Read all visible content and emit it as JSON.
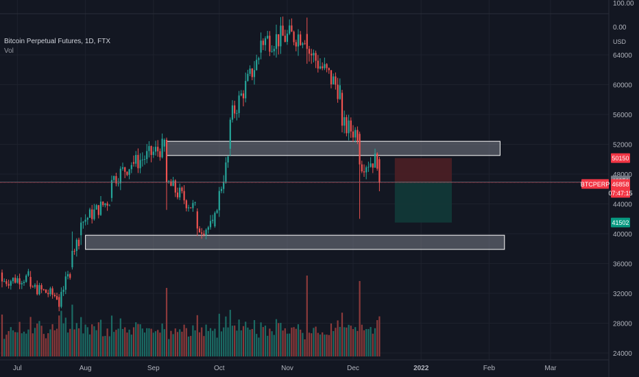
{
  "legend": {
    "title": "Bitcoin Perpetual Futures, 1D, FTX",
    "volume": "Vol"
  },
  "scale_label": "USD",
  "top_scale_labels": [
    "100.00",
    "0.00"
  ],
  "price_tags": [
    {
      "text": "50150",
      "bg": "#f23645",
      "fg": "#ffffff"
    },
    {
      "text": "46951",
      "bg": "#787b86",
      "fg": "#ffffff"
    },
    {
      "text": "BTCPERP",
      "bg": "#f23645",
      "fg": "#ffffff"
    },
    {
      "text": "46858",
      "bg": "#f23645",
      "fg": "#ffffff"
    },
    {
      "text": "07:47:15",
      "bg": "#f23645",
      "fg": "#ffffff"
    },
    {
      "text": "41502",
      "bg": "#089981",
      "fg": "#ffffff"
    }
  ],
  "colors": {
    "background": "#131722",
    "up": "#26a69a",
    "down": "#ef5350",
    "vol_up": "#1b6b64",
    "vol_down": "#8c3a3b",
    "grid": "#1e222d",
    "axis_text": "#b2b5be",
    "zone_fill": "#787b86",
    "zone_border": "#ffffff",
    "stop_fill": "#4d1f25",
    "target_fill": "#123a39",
    "last_price_line": "#f23645"
  },
  "chart_data": {
    "type": "candlestick",
    "title": "Bitcoin Perpetual Futures, 1D, FTX",
    "ylabel": "USD",
    "y_ticks": [
      24000,
      28000,
      32000,
      36000,
      40000,
      44000,
      48000,
      52000,
      56000,
      60000,
      64000
    ],
    "ylim": [
      23500,
      67700
    ],
    "x_ticks": [
      "Jul",
      "Aug",
      "Sep",
      "Oct",
      "Nov",
      "Dec",
      "2022",
      "Feb",
      "Mar"
    ],
    "grid": true,
    "last_price": 46858,
    "series": [
      {
        "date": "2021-06-24",
        "ohlc": [
          34800,
          35200,
          32800,
          33600
        ]
      },
      {
        "date": "2021-07-07",
        "ohlc": [
          34200,
          35000,
          32600,
          32900
        ]
      },
      {
        "date": "2021-07-20",
        "ohlc": [
          31500,
          31900,
          29600,
          30200
        ]
      },
      {
        "date": "2021-07-21",
        "ohlc": [
          30200,
          32800,
          30000,
          32200
        ]
      },
      {
        "date": "2021-07-26",
        "ohlc": [
          35500,
          40300,
          35200,
          37700
        ]
      },
      {
        "date": "2021-07-30",
        "ohlc": [
          39800,
          42200,
          38500,
          41500
        ]
      },
      {
        "date": "2021-08-13",
        "ohlc": [
          44800,
          47800,
          44300,
          47200
        ]
      },
      {
        "date": "2021-08-23",
        "ohlc": [
          49600,
          50500,
          49000,
          49400
        ]
      },
      {
        "date": "2021-09-06",
        "ohlc": [
          51700,
          52800,
          51000,
          52600
        ]
      },
      {
        "date": "2021-09-07",
        "ohlc": [
          52600,
          52900,
          43200,
          46900
        ]
      },
      {
        "date": "2021-09-21",
        "ohlc": [
          43000,
          43400,
          39700,
          40700
        ]
      },
      {
        "date": "2021-09-29",
        "ohlc": [
          41000,
          43000,
          40800,
          42800
        ]
      },
      {
        "date": "2021-10-06",
        "ohlc": [
          51400,
          55600,
          50400,
          55300
        ]
      },
      {
        "date": "2021-10-20",
        "ohlc": [
          64300,
          67000,
          63400,
          65900
        ]
      },
      {
        "date": "2021-11-10",
        "ohlc": [
          66800,
          69000,
          62800,
          64800
        ]
      },
      {
        "date": "2021-11-26",
        "ohlc": [
          58900,
          59300,
          53600,
          54500
        ]
      },
      {
        "date": "2021-12-04",
        "ohlc": [
          53400,
          53700,
          42000,
          49300
        ]
      },
      {
        "date": "2021-12-13",
        "ohlc": [
          50000,
          50300,
          45700,
          46858
        ]
      }
    ],
    "volume": {
      "max_bar_date": "2021-11-10",
      "note_values": "relative"
    },
    "annotations": {
      "resistance_zone": {
        "from": "2021-09-07",
        "to": "2022-02-06",
        "low": 50500,
        "high": 52400
      },
      "support_zone": {
        "from": "2021-08-01",
        "to": "2022-02-08",
        "low": 37900,
        "high": 39800
      },
      "short_position": {
        "from": "2021-12-20",
        "to": "2022-01-15",
        "entry": 46951,
        "stop": 50150,
        "target": 41502
      }
    }
  }
}
